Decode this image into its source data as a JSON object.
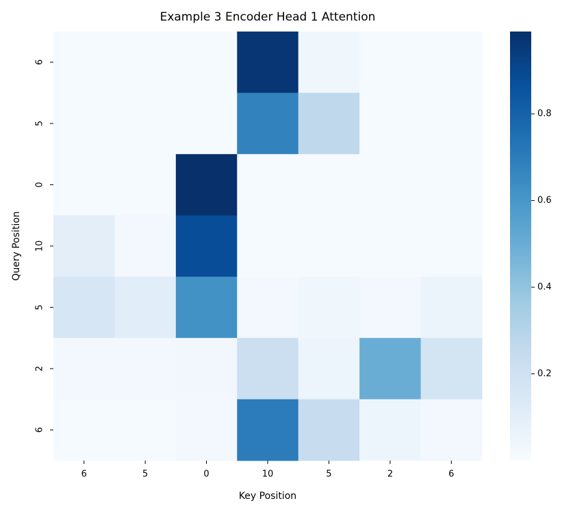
{
  "chart_data": {
    "type": "heatmap",
    "title": "Example 3 Encoder Head 1 Attention",
    "xlabel": "Key Position",
    "ylabel": "Query Position",
    "x_categories": [
      "6",
      "5",
      "0",
      "10",
      "5",
      "2",
      "6"
    ],
    "y_categories": [
      "6",
      "5",
      "0",
      "10",
      "5",
      "2",
      "6"
    ],
    "values": [
      [
        0.01,
        0.01,
        0.01,
        0.97,
        0.04,
        0.01,
        0.01
      ],
      [
        0.01,
        0.01,
        0.01,
        0.68,
        0.27,
        0.01,
        0.01
      ],
      [
        0.01,
        0.01,
        0.99,
        0.01,
        0.01,
        0.01,
        0.01
      ],
      [
        0.1,
        0.02,
        0.88,
        0.01,
        0.01,
        0.01,
        0.01
      ],
      [
        0.16,
        0.11,
        0.62,
        0.02,
        0.04,
        0.02,
        0.06
      ],
      [
        0.02,
        0.02,
        0.03,
        0.22,
        0.05,
        0.5,
        0.18
      ],
      [
        0.01,
        0.01,
        0.02,
        0.7,
        0.24,
        0.05,
        0.02
      ]
    ],
    "colormap": "Blues",
    "clim": [
      0,
      0.99
    ],
    "cticks": [
      0.2,
      0.4,
      0.6,
      0.8
    ]
  }
}
